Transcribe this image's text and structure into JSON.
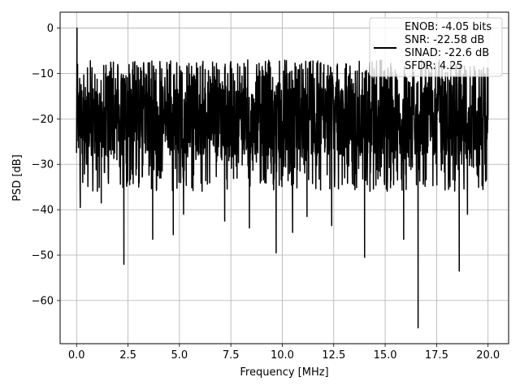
{
  "chart_data": {
    "type": "line",
    "title": "",
    "xlabel": "Frequency [MHz]",
    "ylabel": "PSD [dB]",
    "xlim": [
      -0.8,
      21.0
    ],
    "ylim": [
      -69.5,
      3.5
    ],
    "xticks": [
      0,
      2.5,
      5,
      7.5,
      10,
      12.5,
      15,
      17.5,
      20
    ],
    "xtick_labels": [
      "0.0",
      "2.5",
      "5.0",
      "7.5",
      "10.0",
      "12.5",
      "15.0",
      "17.5",
      "20.0"
    ],
    "yticks": [
      0,
      -10,
      -20,
      -30,
      -40,
      -50,
      -60
    ],
    "ytick_labels": [
      "0",
      "−10",
      "−20",
      "−30",
      "−40",
      "−50",
      "−60"
    ],
    "grid": true,
    "legend_position": "top-right",
    "legend": [
      "ENOB: -4.05 bits",
      "SNR: -22.58 dB",
      "SINAD: -22.6 dB",
      "SFDR: 4.25"
    ],
    "series": [
      {
        "color": "#000000",
        "x": [
          0.0,
          0.02,
          0.05,
          0.08,
          0.12,
          0.18,
          0.3,
          0.5,
          0.9,
          1.2,
          2.3,
          3.7,
          4.7,
          5.2,
          7.2,
          8.4,
          9.7,
          10.5,
          11.2,
          12.4,
          14.0,
          15.9,
          16.6,
          18.6,
          19.0,
          19.9,
          20.0
        ],
        "y": [
          -27.5,
          0.0,
          -8.0,
          -18.0,
          -22.0,
          -39.5,
          -34.0,
          -30.0,
          -25.0,
          -38.5,
          -52.0,
          -46.5,
          -45.5,
          -41.0,
          -42.5,
          -44.0,
          -49.5,
          -45.0,
          -41.5,
          -43.5,
          -50.5,
          -46.5,
          -66.0,
          -53.5,
          -41.0,
          -28.0,
          -19.0
        ],
        "band_upper": -13.0,
        "band_lower": -28.0
      }
    ]
  }
}
